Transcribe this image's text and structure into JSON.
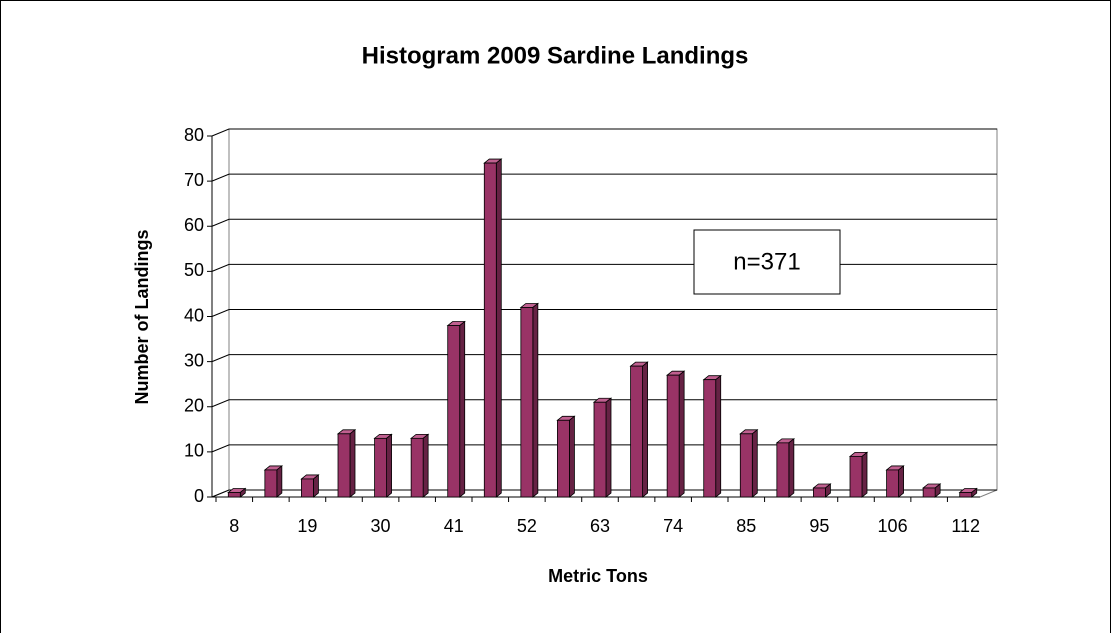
{
  "chart_data": {
    "type": "bar",
    "title": "Histogram 2009 Sardine Landings",
    "x_label": "Metric Tons",
    "y_label": "Number of Landings",
    "annotation": "n=371",
    "categories": [
      "8",
      null,
      "19",
      null,
      "30",
      null,
      "41",
      null,
      "52",
      null,
      "63",
      null,
      "74",
      null,
      "85",
      null,
      "95",
      null,
      "106",
      null,
      "112"
    ],
    "values": [
      1,
      6,
      4,
      14,
      13,
      13,
      38,
      74,
      42,
      17,
      21,
      29,
      27,
      26,
      14,
      12,
      2,
      9,
      6,
      2,
      1
    ],
    "color": "#993366",
    "ylim": [
      0,
      80
    ],
    "yticks": [
      0,
      10,
      20,
      30,
      40,
      50,
      60,
      70,
      80
    ],
    "grid": true
  }
}
